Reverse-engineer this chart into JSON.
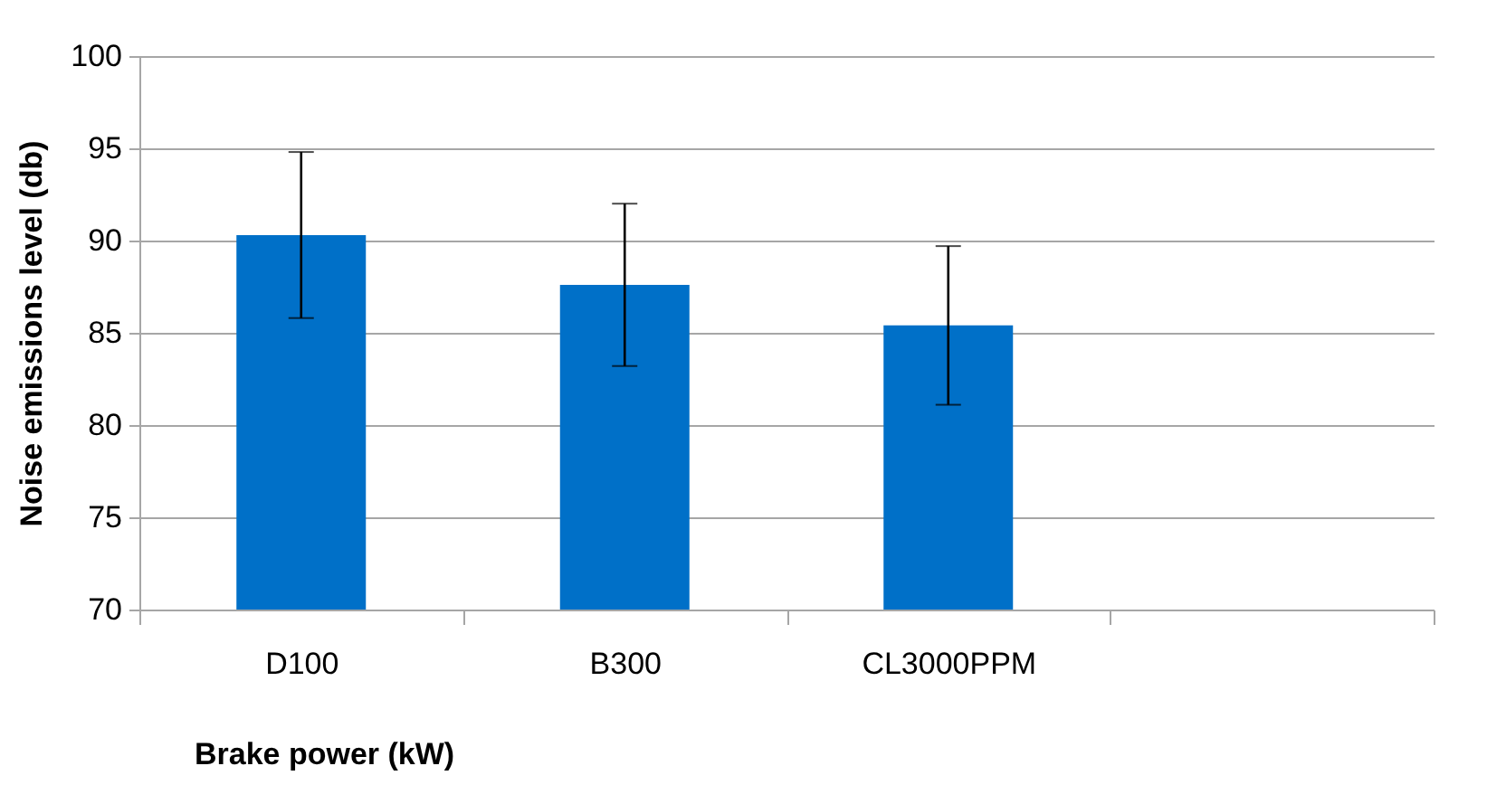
{
  "chart_data": {
    "type": "bar",
    "xlabel": "Brake power (kW)",
    "ylabel": "Noise emissions level (db)",
    "categories": [
      "D100",
      "B300",
      "CL3000PPM",
      null
    ],
    "values": [
      90.3,
      87.6,
      85.4,
      null
    ],
    "errors": [
      4.5,
      4.4,
      4.3,
      null
    ],
    "color": "#0070c8",
    "ylim": [
      70,
      100
    ],
    "yticks": [
      70,
      75,
      80,
      85,
      90,
      95,
      100
    ],
    "grid": "y"
  }
}
